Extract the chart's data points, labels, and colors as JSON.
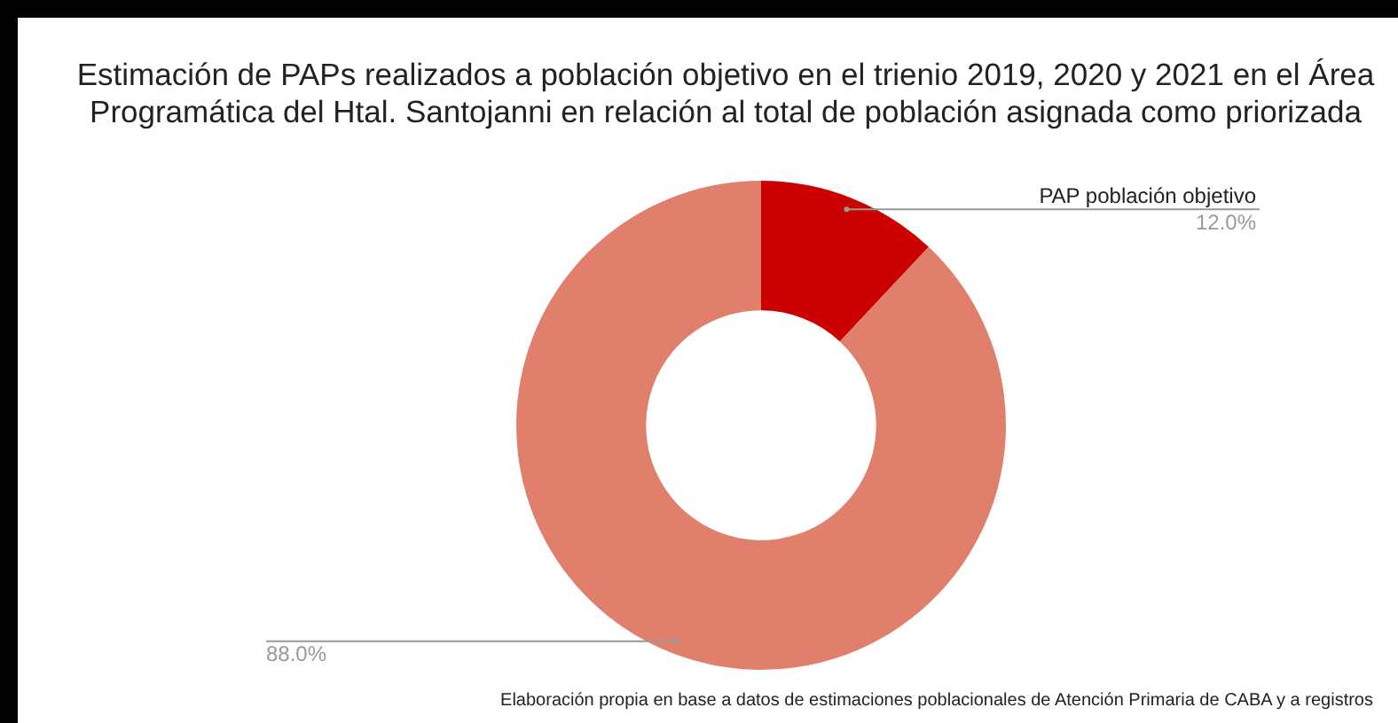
{
  "chart_data": {
    "type": "donut",
    "title": "Estimación de PAPs realizados a población objetivo en el trienio 2019, 2020 y 2021 en el Área Programática del Htal. Santojanni en relación al total de población asignada como priorizada",
    "categories": [
      "PAP población objetivo",
      null
    ],
    "values": [
      12,
      88
    ],
    "value_labels": [
      "12.0%",
      "88.0%"
    ],
    "colors": [
      "#cc0000",
      "#e07f6c"
    ],
    "legend": false,
    "annotations": [
      "Elaboración propia en base a datos de estimaciones poblacionales de Atención Primaria de CABA y a registros"
    ]
  }
}
